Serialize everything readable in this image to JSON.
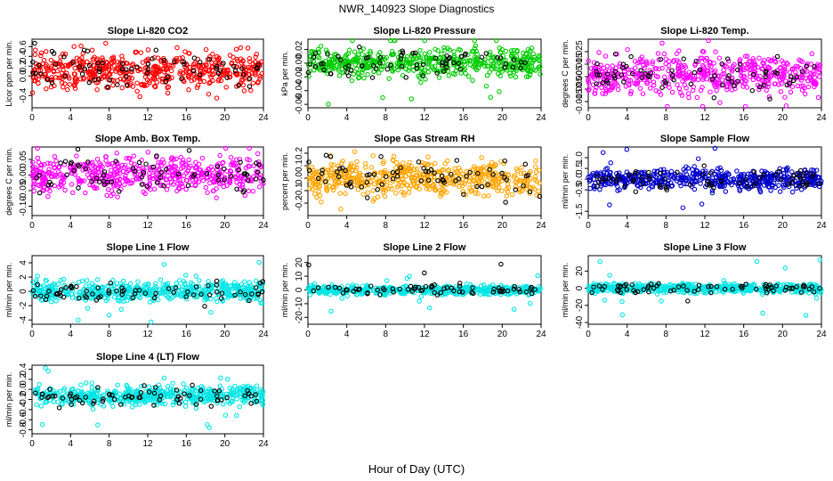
{
  "title": "NWR_140923  Slope Diagnostics",
  "xlabel": "Hour of Day (UTC)",
  "colors": {
    "marker_default": "#000000"
  },
  "chart_data": [
    {
      "type": "scatter",
      "title": "Slope Li-820 CO2",
      "ylabel": "Licor ppm per min.",
      "color": "#ff0000",
      "xlim": [
        0,
        24
      ],
      "ylim": [
        -0.65,
        0.75
      ],
      "xticks": [
        "0",
        "4",
        "8",
        "12",
        "16",
        "20",
        "24"
      ],
      "yticks": [
        {
          "v": -0.4,
          "t": "-0.4"
        },
        {
          "v": 0,
          "t": "0.0"
        },
        {
          "v": 0.2,
          "t": "0.2"
        },
        {
          "v": 0.4,
          "t": "0.4"
        },
        {
          "v": 0.6,
          "t": "0.6"
        }
      ],
      "points": {
        "hours": 24,
        "center": 0.1,
        "spread": 0.28,
        "outlier": 0.65
      }
    },
    {
      "type": "scatter",
      "title": "Slope Li-820 Pressure",
      "ylabel": "kPa per min.",
      "color": "#00cc00",
      "xlim": [
        0,
        24
      ],
      "ylim": [
        -0.065,
        0.035
      ],
      "xticks": [
        "0",
        "4",
        "8",
        "12",
        "16",
        "20",
        "24"
      ],
      "yticks": [
        {
          "v": -0.06,
          "t": "-0.06"
        },
        {
          "v": -0.04,
          "t": "-0.04"
        },
        {
          "v": -0.02,
          "t": "-0.02"
        },
        {
          "v": 0,
          "t": "0.00"
        },
        {
          "v": 0.02,
          "t": "0.02"
        }
      ],
      "points": {
        "hours": 24,
        "center": 0.0,
        "spread": 0.015,
        "outlier": 0.06
      }
    },
    {
      "type": "scatter",
      "title": "Slope Li-820 Temp.",
      "ylabel": "degrees C per min.",
      "color": "#ff00ff",
      "xlim": [
        0,
        24
      ],
      "ylim": [
        -0.02,
        0.035
      ],
      "xticks": [
        "0",
        "4",
        "8",
        "12",
        "16",
        "20",
        "24"
      ],
      "yticks": [
        {
          "v": -0.015,
          "t": "-0.015"
        },
        {
          "v": -0.005,
          "t": "-0.005"
        },
        {
          "v": 0.005,
          "t": "0.005"
        },
        {
          "v": 0.015,
          "t": "0.015"
        },
        {
          "v": 0.025,
          "t": "0.025"
        }
      ],
      "points": {
        "hours": 24,
        "center": 0.006,
        "spread": 0.012,
        "outlier": 0.03
      }
    },
    {
      "type": "scatter",
      "title": "Slope Amb. Box Temp.",
      "ylabel": "degrees C per min.",
      "color": "#ff00ff",
      "xlim": [
        0,
        24
      ],
      "ylim": [
        -0.13,
        0.09
      ],
      "xticks": [
        "0",
        "4",
        "8",
        "12",
        "16",
        "20",
        "24"
      ],
      "yticks": [
        {
          "v": -0.1,
          "t": "-0.10"
        },
        {
          "v": -0.05,
          "t": "-0.05"
        },
        {
          "v": 0,
          "t": "0.00"
        },
        {
          "v": 0.05,
          "t": "0.05"
        }
      ],
      "points": {
        "hours": 24,
        "center": 0.0,
        "spread": 0.04,
        "outlier": 0.11
      }
    },
    {
      "type": "scatter",
      "title": "Slope Gas Stream RH",
      "ylabel": "percent per min.",
      "color": "#ffa500",
      "xlim": [
        0,
        24
      ],
      "ylim": [
        -0.3,
        0.25
      ],
      "xticks": [
        "0",
        "4",
        "8",
        "12",
        "16",
        "20",
        "24"
      ],
      "yticks": [
        {
          "v": -0.2,
          "t": "-0.2"
        },
        {
          "v": -0.1,
          "t": "-0.1"
        },
        {
          "v": 0,
          "t": "0.0"
        },
        {
          "v": 0.1,
          "t": "0.1"
        },
        {
          "v": 0.2,
          "t": "0.2"
        }
      ],
      "points": {
        "hours": 24,
        "center": 0.0,
        "spread": 0.1,
        "outlier": 0.25
      }
    },
    {
      "type": "scatter",
      "title": "Slope Sample Flow",
      "ylabel": "ml/min per min.",
      "color": "#0000cc",
      "xlim": [
        0,
        24
      ],
      "ylim": [
        -1.7,
        1.5
      ],
      "xticks": [
        "0",
        "4",
        "8",
        "12",
        "16",
        "20",
        "24"
      ],
      "yticks": [
        {
          "v": -1.5,
          "t": "-1.5"
        },
        {
          "v": -0.5,
          "t": "-0.5"
        },
        {
          "v": 0,
          "t": "0.0"
        },
        {
          "v": 0.5,
          "t": "0.5"
        },
        {
          "v": 1.0,
          "t": "1.0"
        }
      ],
      "points": {
        "hours": 24,
        "center": 0.0,
        "spread": 0.35,
        "outlier": 1.6
      }
    },
    {
      "type": "scatter",
      "title": "Slope Line 1 Flow",
      "ylabel": "ml/min per min.",
      "color": "#00e5e5",
      "xlim": [
        0,
        24
      ],
      "ylim": [
        -4.6,
        5.0
      ],
      "xticks": [
        "0",
        "4",
        "8",
        "12",
        "16",
        "20",
        "24"
      ],
      "yticks": [
        {
          "v": -4,
          "t": "-4"
        },
        {
          "v": -2,
          "t": "-2"
        },
        {
          "v": 0,
          "t": "0"
        },
        {
          "v": 2,
          "t": "2"
        },
        {
          "v": 4,
          "t": "4"
        }
      ],
      "points": {
        "hours": 24,
        "center": 0.0,
        "spread": 1.0,
        "outlier": 4.5
      }
    },
    {
      "type": "scatter",
      "title": "Slope Line 2 Flow",
      "ylabel": "ml/min per min.",
      "color": "#00e5e5",
      "xlim": [
        0,
        24
      ],
      "ylim": [
        -25,
        25
      ],
      "xticks": [
        "0",
        "4",
        "8",
        "12",
        "16",
        "20",
        "24"
      ],
      "yticks": [
        {
          "v": -20,
          "t": "-20"
        },
        {
          "v": -10,
          "t": "-10"
        },
        {
          "v": 0,
          "t": "0"
        },
        {
          "v": 10,
          "t": "10"
        },
        {
          "v": 20,
          "t": "20"
        }
      ],
      "points": {
        "hours": 24,
        "center": 0.0,
        "spread": 2.5,
        "outlier": 22
      }
    },
    {
      "type": "scatter",
      "title": "Slope Line 3 Flow",
      "ylabel": "ml/min per min.",
      "color": "#00e5e5",
      "xlim": [
        0,
        24
      ],
      "ylim": [
        -42,
        38
      ],
      "xticks": [
        "0",
        "4",
        "8",
        "12",
        "16",
        "20",
        "24"
      ],
      "yticks": [
        {
          "v": -40,
          "t": "-40"
        },
        {
          "v": -20,
          "t": "-20"
        },
        {
          "v": 0,
          "t": "0"
        },
        {
          "v": 20,
          "t": "20"
        }
      ],
      "points": {
        "hours": 24,
        "center": 0.0,
        "spread": 4,
        "outlier": 38
      }
    },
    {
      "type": "scatter",
      "title": "Slope Line 4 (LT) Flow",
      "ylabel": "ml/min per min.",
      "color": "#00e5e5",
      "xlim": [
        0,
        24
      ],
      "ylim": [
        -0.88,
        0.48
      ],
      "xticks": [
        "0",
        "4",
        "8",
        "12",
        "16",
        "20",
        "24"
      ],
      "yticks": [
        {
          "v": -0.8,
          "t": "-0.8"
        },
        {
          "v": -0.6,
          "t": "-0.6"
        },
        {
          "v": -0.4,
          "t": "-0.4"
        },
        {
          "v": -0.2,
          "t": "-0.2"
        },
        {
          "v": 0,
          "t": "0.0"
        },
        {
          "v": 0.2,
          "t": "0.2"
        },
        {
          "v": 0.4,
          "t": "0.4"
        }
      ],
      "points": {
        "hours": 24,
        "center": -0.12,
        "spread": 0.14,
        "outlier": 0.7
      }
    }
  ]
}
